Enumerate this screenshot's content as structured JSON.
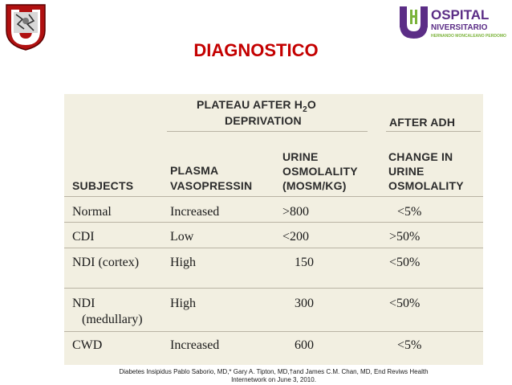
{
  "logos": {
    "left": {
      "name": "university-crest"
    },
    "right": {
      "wordmark": "OSPITAL",
      "line2": "NIVERSITARIO",
      "line3": "HERNANDO MONCALEANO PERDOMO",
      "letter": "U",
      "letter_h": "H",
      "colors": {
        "purple": "#5b2d86",
        "green": "#7bb33a"
      }
    }
  },
  "title": "DIAGNOSTICO",
  "table": {
    "group_header_1a": "PLATEAU AFTER H",
    "group_header_1sub": "2",
    "group_header_1b": "O",
    "group_header_1c": "DEPRIVATION",
    "group_header_2": "AFTER ADH",
    "columns": [
      {
        "line1": "SUBJECTS",
        "line2": "",
        "line3": ""
      },
      {
        "line1": "PLASMA",
        "line2": "VASOPRESSIN",
        "line3": ""
      },
      {
        "line1": "URINE",
        "line2": "OSMOLALITY",
        "line3": "(MOSM/KG)"
      },
      {
        "line1": "CHANGE IN",
        "line2": "URINE",
        "line3": "OSMOLALITY"
      }
    ],
    "rows": [
      {
        "subject": "Normal",
        "subject2": "",
        "vasopressin": "Increased",
        "osmolality": ">800",
        "change": "<5%"
      },
      {
        "subject": "CDI",
        "subject2": "",
        "vasopressin": "Low",
        "osmolality": "<200",
        "change": ">50%"
      },
      {
        "subject": "NDI (cortex)",
        "subject2": "",
        "vasopressin": "High",
        "osmolality": "150",
        "change": "<50%"
      },
      {
        "subject": "NDI",
        "subject2": "(medullary)",
        "vasopressin": "High",
        "osmolality": "300",
        "change": "<50%"
      },
      {
        "subject": "CWD",
        "subject2": "",
        "vasopressin": "Increased",
        "osmolality": "600",
        "change": "<5%"
      }
    ]
  },
  "citation": {
    "line1": "Diabetes Insipidus Pablo Saborio, MD,* Gary A. Tipton, MD,†and James C.M. Chan, MD, End Reviws Health",
    "line2": "Internetwork on June 3, 2010."
  }
}
